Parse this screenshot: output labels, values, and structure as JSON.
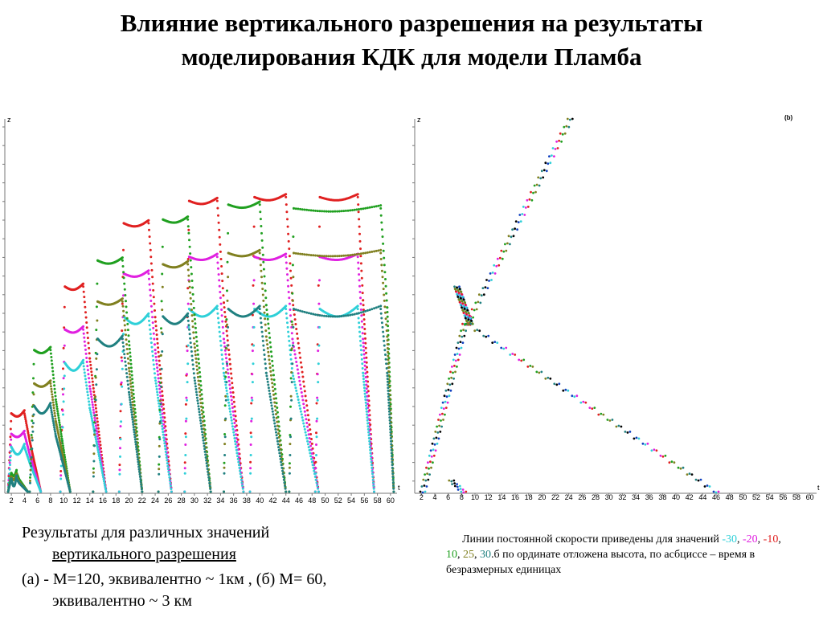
{
  "title": "Влияние вертикального разрешения на результаты моделирования КДК для модели Пламба",
  "caption_left": {
    "line1": "Результаты для различных значений",
    "line2": "вертикального разрешения",
    "line3": "(а) - M=120, эквивалентно ~ 1км , (б) M= 60,",
    "line4": "эквивалентно ~ 3 км"
  },
  "caption_right": {
    "prefix": "Линии постоянной скорости приведены для значений ",
    "v1": "-30",
    "sep1": ", ",
    "v2": "-20",
    "sep2": ", ",
    "v3": "-10",
    "sep3": ", ",
    "v4": "10",
    "sep4": ", ",
    "v5": "25",
    "sep5": ", ",
    "v6": "30",
    "suffix": ".б по ординате отложена высота, по асбциссе – время в безразмерных единицах"
  },
  "colors": {
    "minus30": "#2fd0d8",
    "minus20": "#e020e0",
    "minus10": "#e02020",
    "plus10": "#20a020",
    "plus25": "#808020",
    "plus30": "#208080"
  },
  "chart_data": [
    {
      "type": "scatter",
      "panel": "a",
      "xlabel": "t",
      "ylabel": "z",
      "xlim": [
        1,
        61
      ],
      "x_ticks": [
        "2",
        "4",
        "6",
        "8",
        "10",
        "12",
        "14",
        "16",
        "18",
        "20",
        "22",
        "24",
        "26",
        "28",
        "30",
        "32",
        "34",
        "36",
        "38",
        "40",
        "42",
        "44",
        "46",
        "48",
        "50",
        "52",
        "54",
        "56",
        "58",
        "60"
      ],
      "ylim": [
        0,
        1
      ],
      "series": [
        {
          "color": "#e02020",
          "cycles": [
            {
              "t0": 1.5,
              "tt": 2.0,
              "tp1": 4.0,
              "tp2": 4.8,
              "td": 6.5,
              "top": 0.21,
              "bot": 0.0
            },
            {
              "t0": 9.5,
              "tt": 10.2,
              "tp1": 13.0,
              "tp2": 14.0,
              "td": 16.5,
              "top": 0.55,
              "bot": 0.0
            },
            {
              "t0": 18.5,
              "tt": 19.2,
              "tp1": 23.0,
              "tp2": 24.0,
              "td": 26.5,
              "top": 0.72,
              "bot": 0.0
            },
            {
              "t0": 28.5,
              "tt": 29.2,
              "tp1": 33.5,
              "tp2": 34.5,
              "td": 37.5,
              "top": 0.78,
              "bot": 0.0
            },
            {
              "t0": 38.5,
              "tt": 39.2,
              "tp1": 44.0,
              "tp2": 45.0,
              "td": 49.0,
              "top": 0.79,
              "bot": 0.0
            },
            {
              "t0": 48.5,
              "tt": 49.2,
              "tp1": 55.0,
              "tp2": 55.8,
              "td": 57.5,
              "top": 0.79,
              "bot": 0.0
            }
          ]
        },
        {
          "color": "#e020e0",
          "cycles": [
            {
              "t0": 1.5,
              "tt": 2.0,
              "tp1": 4.0,
              "tp2": 4.8,
              "td": 6.5,
              "top": 0.155,
              "bot": 0.0
            },
            {
              "t0": 9.5,
              "tt": 10.2,
              "tp1": 13.0,
              "tp2": 14.0,
              "td": 16.5,
              "top": 0.435,
              "bot": 0.0
            },
            {
              "t0": 18.5,
              "tt": 19.2,
              "tp1": 23.0,
              "tp2": 24.0,
              "td": 26.5,
              "top": 0.585,
              "bot": 0.0
            },
            {
              "t0": 28.5,
              "tt": 29.2,
              "tp1": 33.5,
              "tp2": 34.5,
              "td": 37.5,
              "top": 0.63,
              "bot": 0.0
            },
            {
              "t0": 38.5,
              "tt": 39.2,
              "tp1": 44.0,
              "tp2": 45.0,
              "td": 49.0,
              "top": 0.63,
              "bot": 0.0
            },
            {
              "t0": 48.5,
              "tt": 49.2,
              "tp1": 55.0,
              "tp2": 55.8,
              "td": 57.5,
              "top": 0.63,
              "bot": 0.0
            }
          ]
        },
        {
          "color": "#2fd0d8",
          "cycles": [
            {
              "t0": 1.5,
              "tt": 2.0,
              "tp1": 4.0,
              "tp2": 4.8,
              "td": 6.5,
              "top": 0.12,
              "bot": 0.0
            },
            {
              "t0": 9.5,
              "tt": 10.2,
              "tp1": 13.0,
              "tp2": 14.0,
              "td": 16.5,
              "top": 0.345,
              "bot": 0.0
            },
            {
              "t0": 18.5,
              "tt": 19.2,
              "tp1": 23.0,
              "tp2": 24.0,
              "td": 26.5,
              "top": 0.47,
              "bot": 0.0
            },
            {
              "t0": 28.5,
              "tt": 29.2,
              "tp1": 33.5,
              "tp2": 34.5,
              "td": 37.5,
              "top": 0.49,
              "bot": 0.0
            },
            {
              "t0": 38.5,
              "tt": 39.2,
              "tp1": 44.0,
              "tp2": 45.0,
              "td": 49.0,
              "top": 0.49,
              "bot": 0.0
            },
            {
              "t0": 48.5,
              "tt": 49.2,
              "tp1": 55.0,
              "tp2": 55.8,
              "td": 57.5,
              "top": 0.49,
              "bot": 0.0
            }
          ]
        },
        {
          "color": "#20a020",
          "cycles": [
            {
              "t0": 1.5,
              "tt": 2.0,
              "tp1": 2.8,
              "tp2": 3.2,
              "td": 4.5,
              "top": 0.05,
              "bot": 0.0
            },
            {
              "t0": 4.8,
              "tt": 5.5,
              "tp1": 8.0,
              "tp2": 8.8,
              "td": 11.0,
              "top": 0.38,
              "bot": 0.0
            },
            {
              "t0": 14.5,
              "tt": 15.2,
              "tp1": 19.0,
              "tp2": 20.0,
              "td": 22.0,
              "top": 0.62,
              "bot": 0.0
            },
            {
              "t0": 24.5,
              "tt": 25.2,
              "tp1": 29.0,
              "tp2": 30.0,
              "td": 32.5,
              "top": 0.73,
              "bot": 0.0
            },
            {
              "t0": 34.5,
              "tt": 35.2,
              "tp1": 40.0,
              "tp2": 41.0,
              "td": 44.0,
              "top": 0.77,
              "bot": 0.0
            },
            {
              "t0": 44.5,
              "tt": 45.2,
              "tp1": 58.5,
              "tp2": 59.5,
              "td": 60.5,
              "top": 0.76,
              "bot": 0.0
            }
          ]
        },
        {
          "color": "#808020",
          "cycles": [
            {
              "t0": 1.5,
              "tt": 2.0,
              "tp1": 2.8,
              "tp2": 3.2,
              "td": 4.5,
              "top": 0.04,
              "bot": 0.0
            },
            {
              "t0": 4.8,
              "tt": 5.5,
              "tp1": 8.0,
              "tp2": 8.8,
              "td": 11.0,
              "top": 0.29,
              "bot": 0.0
            },
            {
              "t0": 14.5,
              "tt": 15.2,
              "tp1": 19.0,
              "tp2": 20.0,
              "td": 22.0,
              "top": 0.51,
              "bot": 0.0
            },
            {
              "t0": 24.5,
              "tt": 25.2,
              "tp1": 29.0,
              "tp2": 30.0,
              "td": 32.5,
              "top": 0.61,
              "bot": 0.0
            },
            {
              "t0": 34.5,
              "tt": 35.2,
              "tp1": 40.0,
              "tp2": 41.0,
              "td": 44.0,
              "top": 0.64,
              "bot": 0.0
            },
            {
              "t0": 44.5,
              "tt": 45.2,
              "tp1": 58.5,
              "tp2": 59.5,
              "td": 60.5,
              "top": 0.64,
              "bot": 0.0
            }
          ]
        },
        {
          "color": "#208080",
          "cycles": [
            {
              "t0": 1.5,
              "tt": 2.0,
              "tp1": 2.8,
              "tp2": 3.2,
              "td": 4.5,
              "top": 0.035,
              "bot": 0.0
            },
            {
              "t0": 4.8,
              "tt": 5.5,
              "tp1": 8.0,
              "tp2": 8.8,
              "td": 11.0,
              "top": 0.23,
              "bot": 0.0
            },
            {
              "t0": 14.5,
              "tt": 15.2,
              "tp1": 19.0,
              "tp2": 20.0,
              "td": 22.0,
              "top": 0.41,
              "bot": 0.0
            },
            {
              "t0": 24.5,
              "tt": 25.2,
              "tp1": 29.0,
              "tp2": 30.0,
              "td": 32.5,
              "top": 0.47,
              "bot": 0.0
            },
            {
              "t0": 34.5,
              "tt": 35.2,
              "tp1": 40.0,
              "tp2": 41.0,
              "td": 44.0,
              "top": 0.49,
              "bot": 0.0
            },
            {
              "t0": 44.5,
              "tt": 45.2,
              "tp1": 58.5,
              "tp2": 59.5,
              "td": 60.5,
              "top": 0.49,
              "bot": 0.0
            }
          ]
        }
      ]
    },
    {
      "type": "scatter",
      "panel": "b",
      "label": "(b)",
      "xlabel": "t",
      "ylabel": "z",
      "xlim": [
        1,
        61
      ],
      "x_ticks": [
        "2",
        "4",
        "6",
        "8",
        "10",
        "12",
        "14",
        "16",
        "18",
        "20",
        "22",
        "24",
        "26",
        "28",
        "30",
        "32",
        "34",
        "36",
        "38",
        "40",
        "42",
        "44",
        "46",
        "48",
        "50",
        "52",
        "54",
        "56",
        "58",
        "60"
      ],
      "ylim": [
        0,
        1
      ],
      "branches": [
        {
          "name": "upper",
          "from": [
            8.8,
            0.45
          ],
          "to": [
            24.2,
            1.0
          ]
        },
        {
          "name": "dip",
          "from": [
            9.3,
            0.45
          ],
          "to": [
            7.3,
            0.55
          ]
        },
        {
          "name": "lower-left",
          "from": [
            8.5,
            0.45
          ],
          "to": [
            2.2,
            0.0
          ]
        },
        {
          "name": "lower-right",
          "from": [
            9.0,
            0.45
          ],
          "to": [
            46.0,
            0.0
          ]
        },
        {
          "name": "foot",
          "from": [
            6.5,
            0.03
          ],
          "to": [
            8.3,
            0.0
          ]
        }
      ],
      "series_colors": [
        "#2fd0d8",
        "#e020e0",
        "#e02020",
        "#20a020",
        "#808020",
        "#208080",
        "#000000",
        "#1040c0"
      ]
    }
  ]
}
